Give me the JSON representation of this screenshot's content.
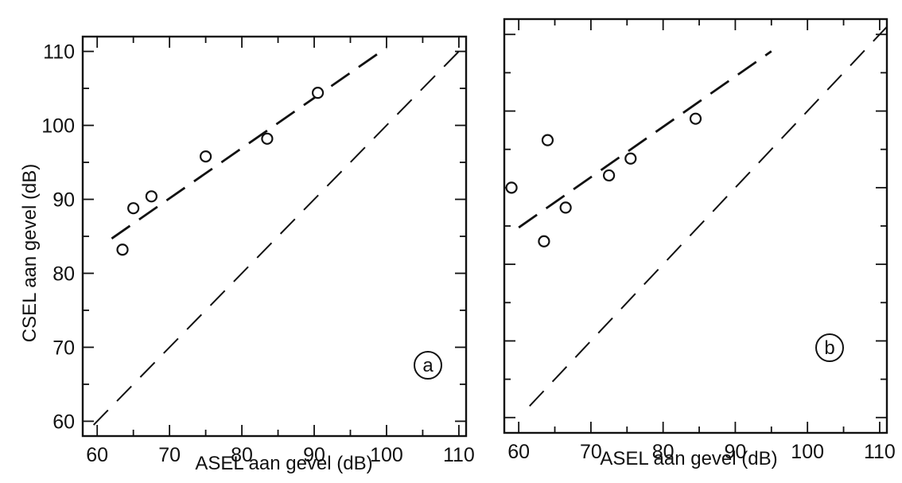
{
  "chart_data": [
    {
      "panel": "a",
      "type": "scatter",
      "xlabel": "ASEL aan gevel (dB)",
      "ylabel": "CSEL aan gevel (dB)",
      "xlim": [
        58,
        111
      ],
      "ylim": [
        58,
        112
      ],
      "xticks": [
        60,
        70,
        80,
        90,
        100,
        110
      ],
      "yticks": [
        60,
        70,
        80,
        90,
        100,
        110
      ],
      "points": [
        {
          "x": 63.5,
          "y": 83.2
        },
        {
          "x": 65.0,
          "y": 88.8
        },
        {
          "x": 67.5,
          "y": 90.4
        },
        {
          "x": 75.0,
          "y": 95.8
        },
        {
          "x": 83.5,
          "y": 98.2
        },
        {
          "x": 90.5,
          "y": 104.4
        }
      ],
      "fit_line": {
        "x": [
          62,
          100
        ],
        "y": [
          84.7,
          110.5
        ]
      },
      "reference_line": {
        "x": [
          59.5,
          110
        ],
        "y": [
          59.5,
          110
        ]
      }
    },
    {
      "panel": "b",
      "type": "scatter",
      "xlabel": "ASEL aan gevel (dB)",
      "ylabel": "",
      "xlim": [
        58,
        111
      ],
      "ylim": [
        58,
        112
      ],
      "xticks": [
        60,
        70,
        80,
        90,
        100,
        110
      ],
      "yticks": [
        60,
        70,
        80,
        90,
        100,
        110
      ],
      "points": [
        {
          "x": 59.0,
          "y": 90.0
        },
        {
          "x": 63.5,
          "y": 83.0
        },
        {
          "x": 64.0,
          "y": 96.2
        },
        {
          "x": 66.5,
          "y": 87.4
        },
        {
          "x": 72.5,
          "y": 91.6
        },
        {
          "x": 75.5,
          "y": 93.8
        },
        {
          "x": 84.5,
          "y": 99.0
        }
      ],
      "fit_line": {
        "x": [
          60,
          95
        ],
        "y": [
          84.8,
          107.8
        ]
      },
      "reference_line": {
        "x": [
          61.5,
          111
        ],
        "y": [
          61.5,
          111
        ]
      }
    }
  ]
}
